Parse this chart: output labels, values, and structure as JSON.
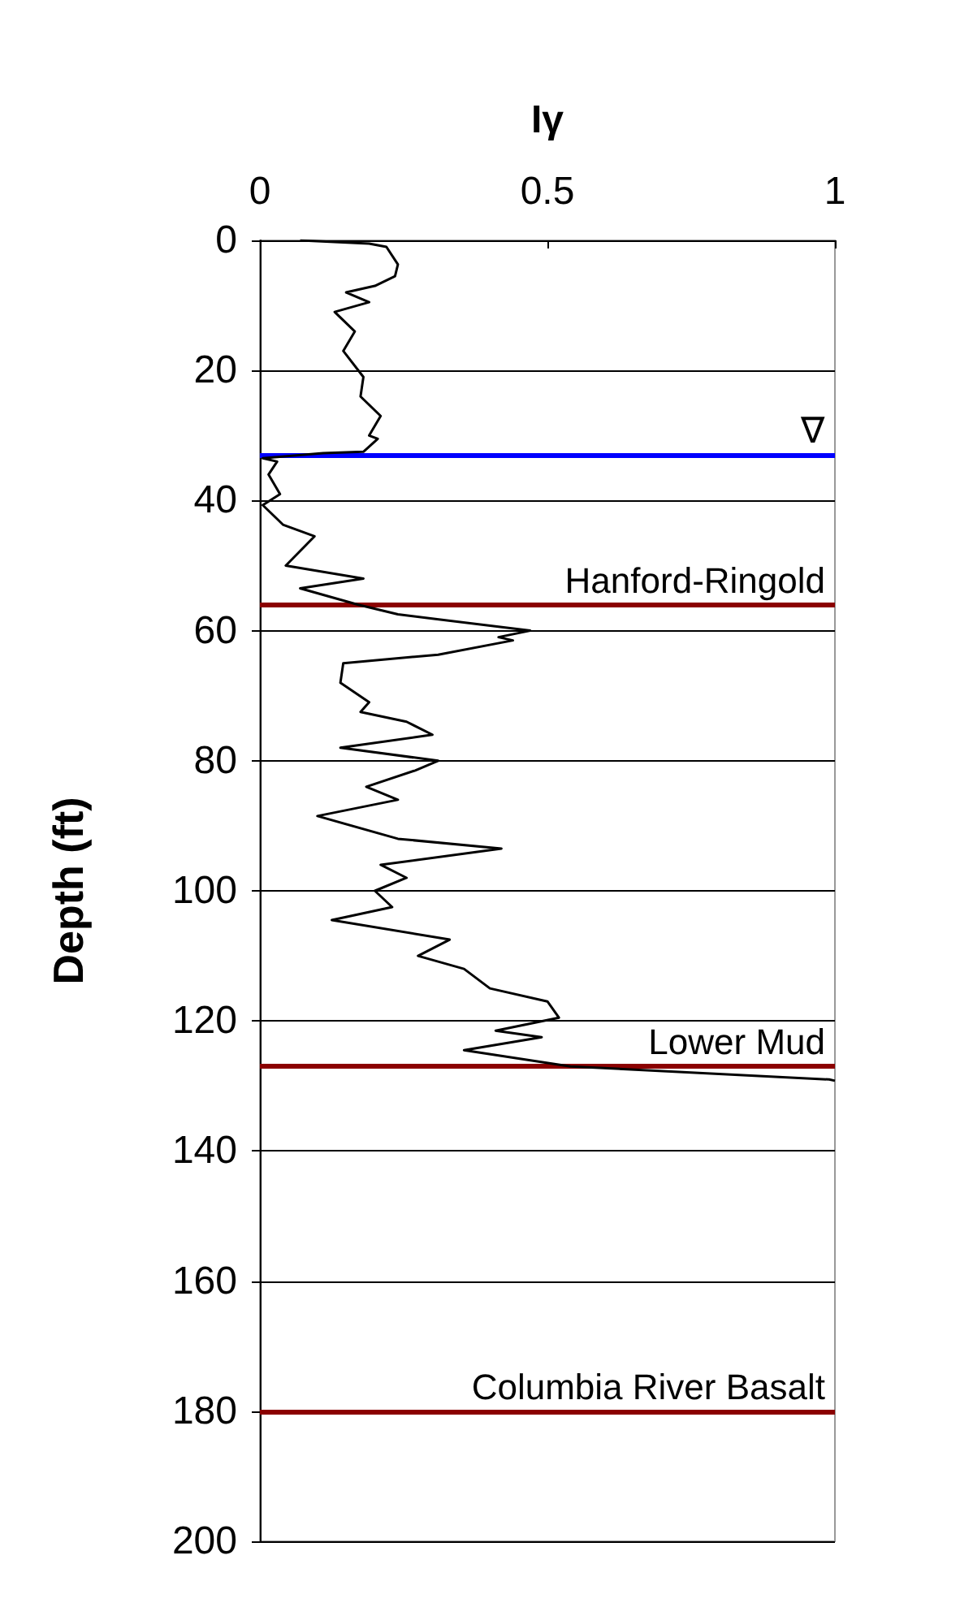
{
  "chart_data": {
    "type": "line",
    "xlabel": "Iγ",
    "ylabel": "Depth (ft)",
    "xlim": [
      0,
      1
    ],
    "xticks": [
      0,
      0.5,
      1
    ],
    "ylim": [
      200,
      0
    ],
    "yticks": [
      0,
      20,
      40,
      60,
      80,
      100,
      120,
      140,
      160,
      180,
      200
    ],
    "grid": "y",
    "marker": "none",
    "line_style": "solid",
    "series": [
      {
        "color": "#000000",
        "x": [
          0.07,
          0.19,
          0.22,
          0.24,
          0.235,
          0.2,
          0.15,
          0.19,
          0.13,
          0.165,
          0.145,
          0.18,
          0.175,
          0.21,
          0.19,
          0.205,
          0.18,
          0.11,
          0.005,
          0.03,
          0.015,
          0.035,
          0.005,
          0.04,
          0.095,
          0.045,
          0.18,
          0.07,
          0.17,
          0.24,
          0.47,
          0.415,
          0.44,
          0.31,
          0.145,
          0.14,
          0.19,
          0.175,
          0.255,
          0.3,
          0.14,
          0.31,
          0.27,
          0.185,
          0.24,
          0.1,
          0.24,
          0.42,
          0.21,
          0.255,
          0.2,
          0.23,
          0.125,
          0.33,
          0.275,
          0.355,
          0.4,
          0.5,
          0.52,
          0.41,
          0.49,
          0.355,
          0.54,
          0.99,
          1.0
        ],
        "values": [
          0,
          0.5,
          1,
          3.7,
          5.5,
          7,
          8,
          9.5,
          11,
          14,
          17,
          21,
          24,
          27,
          30,
          30.5,
          32.5,
          32.7,
          33.5,
          34,
          36,
          39,
          40.7,
          43.7,
          45.5,
          50,
          52,
          53.5,
          56,
          57.5,
          60,
          61,
          61.5,
          63.7,
          65,
          68,
          71,
          72.5,
          74,
          76,
          78,
          80,
          81.5,
          84,
          86,
          88.5,
          92,
          93.5,
          96,
          98,
          100,
          102.5,
          104.5,
          107.5,
          110,
          112,
          115,
          117,
          119.5,
          121.5,
          122.5,
          124.5,
          127,
          129,
          129.2
        ]
      }
    ],
    "ref_lines": [
      {
        "axis": "y",
        "value": 33,
        "label": "∇",
        "color": "#0000ff"
      },
      {
        "axis": "y",
        "value": 56,
        "label": "Hanford-Ringold",
        "color": "#8b0000"
      },
      {
        "axis": "y",
        "value": 127,
        "label": "Lower Mud",
        "color": "#8b0000"
      },
      {
        "axis": "y",
        "value": 180,
        "label": "Columbia River Basalt",
        "color": "#8b0000"
      }
    ]
  }
}
